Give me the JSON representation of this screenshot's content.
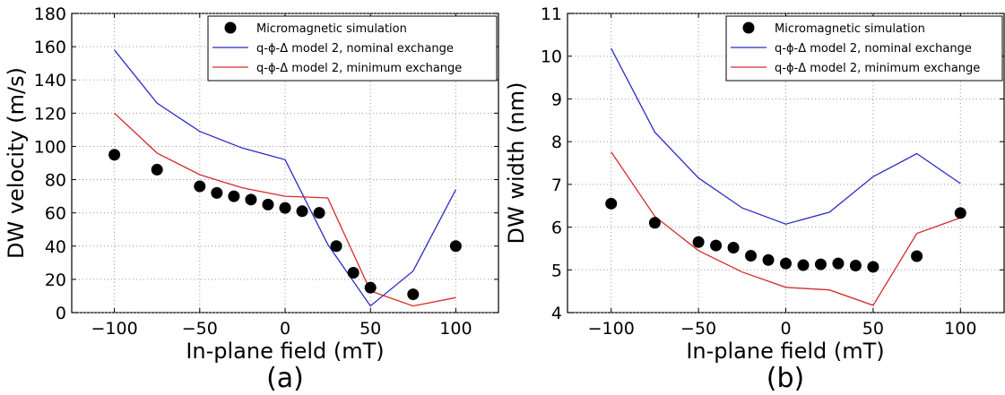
{
  "chart_data": [
    {
      "type": "line",
      "panel_label": "(a)",
      "xlabel": "In-plane field (mT)",
      "ylabel": "DW velocity (m/s)",
      "xlim": [
        -125,
        125
      ],
      "ylim": [
        0,
        180
      ],
      "xticks": [
        -100,
        -50,
        0,
        50,
        100
      ],
      "yticks": [
        0,
        20,
        40,
        60,
        80,
        100,
        120,
        140,
        160,
        180
      ],
      "grid": true,
      "legend_position": "upper-right",
      "series": [
        {
          "name": "Micromagnetic simulation",
          "kind": "scatter",
          "color": "#000000",
          "x": [
            -100,
            -75,
            -50,
            -40,
            -30,
            -20,
            -10,
            0,
            10,
            20,
            30,
            40,
            50,
            75,
            100
          ],
          "y": [
            95,
            86,
            76,
            72,
            70,
            68,
            65,
            63,
            61,
            60,
            40,
            24,
            15,
            11,
            40
          ]
        },
        {
          "name": "q-ϕ-Δ model 2, nominal exchange",
          "kind": "line",
          "color": "#2b2bc8",
          "x": [
            -100,
            -75,
            -50,
            -25,
            0,
            25,
            50,
            75,
            100
          ],
          "y": [
            158,
            126,
            109,
            99,
            92,
            41,
            4,
            25,
            74
          ]
        },
        {
          "name": "q-ϕ-Δ model 2, minimum exchange",
          "kind": "line",
          "color": "#d62a2a",
          "x": [
            -100,
            -75,
            -50,
            -25,
            0,
            25,
            50,
            75,
            100
          ],
          "y": [
            120,
            96,
            83,
            75,
            70,
            69,
            13,
            4,
            9
          ]
        }
      ]
    },
    {
      "type": "line",
      "panel_label": "(b)",
      "xlabel": "In-plane field (mT)",
      "ylabel": "DW width (nm)",
      "xlim": [
        -125,
        125
      ],
      "ylim": [
        4,
        11
      ],
      "xticks": [
        -100,
        -50,
        0,
        50,
        100
      ],
      "yticks": [
        4,
        5,
        6,
        7,
        8,
        9,
        10,
        11
      ],
      "grid": true,
      "legend_position": "upper-right",
      "series": [
        {
          "name": "Micromagnetic simulation",
          "kind": "scatter",
          "color": "#000000",
          "x": [
            -100,
            -75,
            -50,
            -40,
            -30,
            -20,
            -10,
            0,
            10,
            20,
            30,
            40,
            50,
            75,
            100
          ],
          "y": [
            6.55,
            6.1,
            5.65,
            5.57,
            5.52,
            5.33,
            5.23,
            5.15,
            5.11,
            5.13,
            5.15,
            5.1,
            5.07,
            5.32,
            6.33
          ]
        },
        {
          "name": "q-ϕ-Δ model 2, nominal exchange",
          "kind": "line",
          "color": "#2b2bc8",
          "x": [
            -100,
            -75,
            -50,
            -25,
            0,
            25,
            50,
            75,
            100
          ],
          "y": [
            10.18,
            8.22,
            7.15,
            6.45,
            6.07,
            6.35,
            7.18,
            7.72,
            7.02
          ]
        },
        {
          "name": "q-ϕ-Δ model 2, minimum exchange",
          "kind": "line",
          "color": "#d62a2a",
          "x": [
            -100,
            -75,
            -50,
            -25,
            0,
            25,
            50,
            75,
            100
          ],
          "y": [
            7.76,
            6.25,
            5.45,
            4.95,
            4.59,
            4.53,
            4.17,
            5.85,
            6.22
          ]
        }
      ]
    }
  ]
}
